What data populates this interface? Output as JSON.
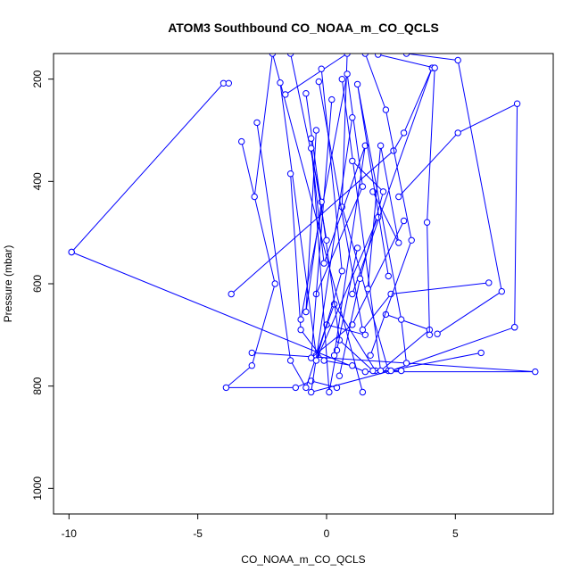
{
  "chart_data": {
    "type": "line",
    "title": "ATOM3 Southbound CO_NOAA_m_CO_QCLS",
    "xlabel": "CO_NOAA_m_CO_QCLS",
    "ylabel": "Pressure (mbar)",
    "xlim": [
      -10.6,
      8.8
    ],
    "ylim": [
      1050,
      150
    ],
    "y_reversed": true,
    "x_ticks": [
      -10,
      -5,
      0,
      5
    ],
    "y_ticks": [
      200,
      400,
      600,
      800,
      1000
    ],
    "grid": false,
    "series_color": "#0000ff",
    "series": [
      {
        "points": [
          [
            -9.9,
            538
          ],
          [
            -4.0,
            208
          ],
          [
            -3.8,
            208
          ]
        ]
      },
      {
        "points": [
          [
            -9.9,
            538
          ],
          [
            1.5,
            772
          ],
          [
            8.1,
            772
          ],
          [
            -2.9,
            735
          ]
        ]
      },
      {
        "points": [
          [
            -3.7,
            620
          ],
          [
            2.6,
            340
          ],
          [
            3.0,
            305
          ],
          [
            4.1,
            178
          ],
          [
            1.0,
            620
          ]
        ]
      },
      {
        "points": [
          [
            -3.3,
            322
          ],
          [
            -2.0,
            600
          ],
          [
            -2.9,
            760
          ],
          [
            -3.9,
            803
          ],
          [
            -1.2,
            803
          ],
          [
            -0.6,
            790
          ],
          [
            0.4,
            803
          ]
        ]
      },
      {
        "points": [
          [
            -2.8,
            430
          ],
          [
            -2.1,
            150
          ],
          [
            1.4,
            812
          ]
        ]
      },
      {
        "points": [
          [
            -2.7,
            285
          ],
          [
            -1.4,
            750
          ],
          [
            -0.8,
            803
          ],
          [
            0.0,
            680
          ],
          [
            1.5,
            700
          ]
        ]
      },
      {
        "points": [
          [
            -1.8,
            207
          ],
          [
            -0.4,
            740
          ],
          [
            0.3,
            640
          ],
          [
            1.9,
            770
          ]
        ]
      },
      {
        "points": [
          [
            -1.6,
            230
          ],
          [
            0.8,
            150
          ],
          [
            0.6,
            450
          ],
          [
            2.4,
            770
          ],
          [
            6.0,
            735
          ]
        ]
      },
      {
        "points": [
          [
            -1.4,
            385
          ],
          [
            -1.0,
            690
          ],
          [
            -0.1,
            750
          ],
          [
            1.0,
            760
          ]
        ]
      },
      {
        "points": [
          [
            -1.0,
            670
          ],
          [
            0.8,
            190
          ],
          [
            1.4,
            410
          ],
          [
            -0.4,
            620
          ]
        ]
      },
      {
        "points": [
          [
            -0.8,
            228
          ],
          [
            0.5,
            710
          ],
          [
            1.8,
            770
          ],
          [
            2.9,
            770
          ]
        ]
      },
      {
        "points": [
          [
            -0.6,
            316
          ],
          [
            0.1,
            812
          ],
          [
            0.4,
            730
          ],
          [
            1.2,
            530
          ]
        ]
      },
      {
        "points": [
          [
            -0.3,
            205
          ],
          [
            1.4,
            690
          ],
          [
            2.5,
            620
          ],
          [
            6.3,
            598
          ]
        ]
      },
      {
        "points": [
          [
            0.2,
            240
          ],
          [
            -0.6,
            745
          ],
          [
            1.0,
            680
          ],
          [
            3.0,
            477
          ]
        ]
      },
      {
        "points": [
          [
            0.6,
            200
          ],
          [
            2.1,
            770
          ],
          [
            4.0,
            690
          ],
          [
            2.3,
            660
          ]
        ]
      },
      {
        "points": [
          [
            1.0,
            275
          ],
          [
            -0.6,
            812
          ],
          [
            2.5,
            770
          ],
          [
            7.3,
            685
          ]
        ]
      },
      {
        "points": [
          [
            1.5,
            150
          ],
          [
            2.3,
            260
          ],
          [
            3.3,
            515
          ],
          [
            1.7,
            740
          ]
        ]
      },
      {
        "points": [
          [
            2.0,
            152
          ],
          [
            4.2,
            178
          ],
          [
            3.9,
            480
          ],
          [
            4.0,
            700
          ]
        ]
      },
      {
        "points": [
          [
            2.8,
            430
          ],
          [
            5.1,
            305
          ],
          [
            7.4,
            248
          ],
          [
            7.3,
            685
          ]
        ]
      },
      {
        "points": [
          [
            3.1,
            150
          ],
          [
            5.1,
            163
          ],
          [
            6.8,
            615
          ],
          [
            4.3,
            698
          ]
        ]
      },
      {
        "points": [
          [
            -1.4,
            150
          ],
          [
            -0.2,
            440
          ],
          [
            -0.8,
            655
          ],
          [
            -0.4,
            300
          ]
        ]
      },
      {
        "points": [
          [
            0.0,
            515
          ],
          [
            -0.6,
            335
          ],
          [
            -0.1,
            560
          ],
          [
            1.5,
            330
          ],
          [
            0.3,
            740
          ]
        ]
      },
      {
        "points": [
          [
            1.0,
            360
          ],
          [
            2.2,
            420
          ],
          [
            1.3,
            590
          ],
          [
            0.5,
            780
          ]
        ]
      },
      {
        "points": [
          [
            -0.2,
            180
          ],
          [
            0.6,
            575
          ],
          [
            -0.4,
            750
          ],
          [
            2.0,
            470
          ]
        ]
      },
      {
        "points": [
          [
            1.8,
            420
          ],
          [
            2.8,
            520
          ],
          [
            2.1,
            330
          ],
          [
            1.6,
            610
          ]
        ]
      },
      {
        "points": [
          [
            2.4,
            585
          ],
          [
            1.2,
            210
          ],
          [
            2.9,
            670
          ],
          [
            3.1,
            755
          ]
        ]
      }
    ]
  }
}
